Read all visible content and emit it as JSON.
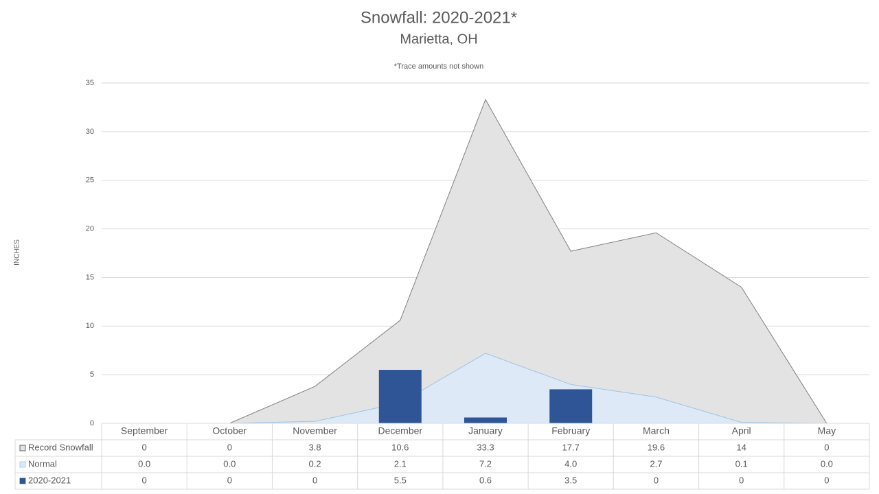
{
  "chart_data": {
    "type": "combo",
    "title": "Snowfall: 2020-2021*",
    "subtitle": "Marietta, OH",
    "note": "*Trace amounts not shown",
    "y_label": "INCHES",
    "categories": [
      "September",
      "October",
      "November",
      "December",
      "January",
      "February",
      "March",
      "April",
      "May"
    ],
    "series": [
      {
        "name": "Record Snowfall",
        "type": "area",
        "color": "#e3e3e3",
        "line_color": "#808080",
        "values": [
          0,
          0,
          3.8,
          10.6,
          33.3,
          17.7,
          19.6,
          14,
          0
        ]
      },
      {
        "name": "Normal",
        "type": "area",
        "color": "#dde9f6",
        "line_color": "#9dc3e6",
        "values": [
          0,
          0,
          0.2,
          2.1,
          7.2,
          4.0,
          2.7,
          0.1,
          0
        ],
        "value_labels": [
          "0.0",
          "0.0",
          "0.2",
          "2.1",
          "7.2",
          "4.0",
          "2.7",
          "0.1",
          "0.0"
        ]
      },
      {
        "name": "2020-2021",
        "type": "bar",
        "color": "#2f5597",
        "values": [
          0,
          0,
          0,
          5.5,
          0.6,
          3.5,
          0,
          0,
          0
        ]
      }
    ],
    "ylim": [
      0,
      35
    ],
    "yticks": [
      0,
      5,
      10,
      15,
      20,
      25,
      30,
      35
    ],
    "grid": true,
    "data_table": true
  }
}
